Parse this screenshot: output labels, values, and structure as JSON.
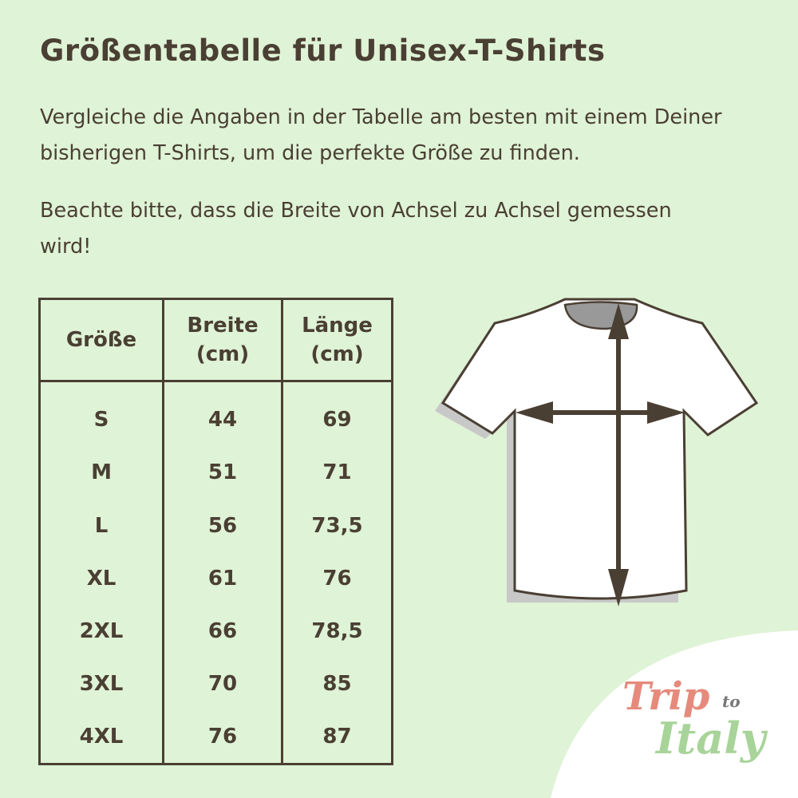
{
  "title": "Größentabelle für Unisex-T-Shirts",
  "paragraphs": [
    "Vergleiche die Angaben in der Tabelle am besten mit einem Deiner bisherigen T-Shirts, um die perfekte Größe zu finden.",
    "Beachte bitte, dass die Breite von Achsel zu Achsel gemessen wird!"
  ],
  "table": {
    "headers": [
      "Größe",
      "Breite (cm)",
      "Länge (cm)"
    ],
    "rows": [
      [
        "S",
        "44",
        "69"
      ],
      [
        "M",
        "51",
        "71"
      ],
      [
        "L",
        "56",
        "73,5"
      ],
      [
        "XL",
        "61",
        "76"
      ],
      [
        "2XL",
        "66",
        "78,5"
      ],
      [
        "3XL",
        "70",
        "85"
      ],
      [
        "4XL",
        "76",
        "87"
      ]
    ]
  },
  "logo": {
    "line1": "Trip",
    "small": "to",
    "line2": "Italy"
  },
  "colors": {
    "background": "#dff3d6",
    "text": "#4a3f33",
    "logo_red": "#e68a7b",
    "logo_green": "#a8d49a"
  }
}
